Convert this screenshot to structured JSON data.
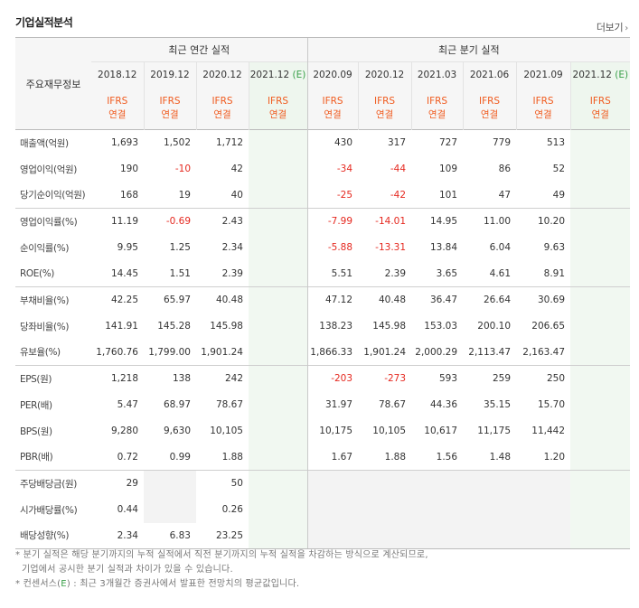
{
  "header": {
    "title": "기업실적분석",
    "more_label": "더보기",
    "more_arrow": "›"
  },
  "table": {
    "row_header_label": "주요재무정보",
    "group_annual": "최근 연간 실적",
    "group_quarterly": "최근 분기 실적",
    "annual_periods": [
      "2018.12",
      "2019.12",
      "2020.12",
      "2021.12"
    ],
    "quarterly_periods": [
      "2020.09",
      "2020.12",
      "2021.03",
      "2021.06",
      "2021.09",
      "2021.12"
    ],
    "estimate_mark": "(E)",
    "ifrs_top": "IFRS",
    "ifrs_bottom": "연결",
    "rows": [
      {
        "label": "매출액(억원)",
        "annual": [
          "1,693",
          "1,502",
          "1,712",
          ""
        ],
        "quarterly": [
          "430",
          "317",
          "727",
          "779",
          "513",
          ""
        ]
      },
      {
        "label": "영업이익(억원)",
        "annual": [
          "190",
          "-10",
          "42",
          ""
        ],
        "quarterly": [
          "-34",
          "-44",
          "109",
          "86",
          "52",
          ""
        ]
      },
      {
        "label": "당기순이익(억원)",
        "annual": [
          "168",
          "19",
          "40",
          ""
        ],
        "quarterly": [
          "-25",
          "-42",
          "101",
          "47",
          "49",
          ""
        ]
      },
      {
        "label": "영업이익률(%)",
        "annual": [
          "11.19",
          "-0.69",
          "2.43",
          ""
        ],
        "quarterly": [
          "-7.99",
          "-14.01",
          "14.95",
          "11.00",
          "10.20",
          ""
        ]
      },
      {
        "label": "순이익률(%)",
        "annual": [
          "9.95",
          "1.25",
          "2.34",
          ""
        ],
        "quarterly": [
          "-5.88",
          "-13.31",
          "13.84",
          "6.04",
          "9.63",
          ""
        ]
      },
      {
        "label": "ROE(%)",
        "annual": [
          "14.45",
          "1.51",
          "2.39",
          ""
        ],
        "quarterly": [
          "5.51",
          "2.39",
          "3.65",
          "4.61",
          "8.91",
          ""
        ]
      },
      {
        "label": "부채비율(%)",
        "annual": [
          "42.25",
          "65.97",
          "40.48",
          ""
        ],
        "quarterly": [
          "47.12",
          "40.48",
          "36.47",
          "26.64",
          "30.69",
          ""
        ]
      },
      {
        "label": "당좌비율(%)",
        "annual": [
          "141.91",
          "145.28",
          "145.98",
          ""
        ],
        "quarterly": [
          "138.23",
          "145.98",
          "153.03",
          "200.10",
          "206.65",
          ""
        ]
      },
      {
        "label": "유보율(%)",
        "annual": [
          "1,760.76",
          "1,799.00",
          "1,901.24",
          ""
        ],
        "quarterly": [
          "1,866.33",
          "1,901.24",
          "2,000.29",
          "2,113.47",
          "2,163.47",
          ""
        ]
      },
      {
        "label": "EPS(원)",
        "annual": [
          "1,218",
          "138",
          "242",
          ""
        ],
        "quarterly": [
          "-203",
          "-273",
          "593",
          "259",
          "250",
          ""
        ]
      },
      {
        "label": "PER(배)",
        "annual": [
          "5.47",
          "68.97",
          "78.67",
          ""
        ],
        "quarterly": [
          "31.97",
          "78.67",
          "44.36",
          "35.15",
          "15.70",
          ""
        ]
      },
      {
        "label": "BPS(원)",
        "annual": [
          "9,280",
          "9,630",
          "10,105",
          ""
        ],
        "quarterly": [
          "10,175",
          "10,105",
          "10,617",
          "11,175",
          "11,442",
          ""
        ]
      },
      {
        "label": "PBR(배)",
        "annual": [
          "0.72",
          "0.99",
          "1.88",
          ""
        ],
        "quarterly": [
          "1.67",
          "1.88",
          "1.56",
          "1.48",
          "1.20",
          ""
        ]
      },
      {
        "label": "주당배당금(원)",
        "annual": [
          "29",
          "",
          "50",
          ""
        ],
        "quarterly": [
          "",
          "",
          "",
          "",
          "",
          ""
        ]
      },
      {
        "label": "시가배당률(%)",
        "annual": [
          "0.44",
          "",
          "0.26",
          ""
        ],
        "quarterly": [
          "",
          "",
          "",
          "",
          "",
          ""
        ]
      },
      {
        "label": "배당성향(%)",
        "annual": [
          "2.34",
          "6.83",
          "23.25",
          ""
        ],
        "quarterly": [
          "",
          "",
          "",
          "",
          "",
          ""
        ]
      }
    ]
  },
  "notes": {
    "note1_line1": "* 분기 실적은 해당 분기까지의 누적 실적에서 직전 분기까지의 누적 실적을 차감하는 방식으로 계산되므로,",
    "note1_line2": "기업에서 공시한 분기 실적과 차이가 있을 수 있습니다.",
    "note2_pre": "* 컨센서스(",
    "note2_e": "E",
    "note2_post": ") : 최근 3개월간 증권사에서 발표한 전망치의 평균값입니다."
  },
  "colors": {
    "negative": "#e5281f",
    "ifrs": "#f05b1f",
    "estimate": "#3aa04a"
  }
}
